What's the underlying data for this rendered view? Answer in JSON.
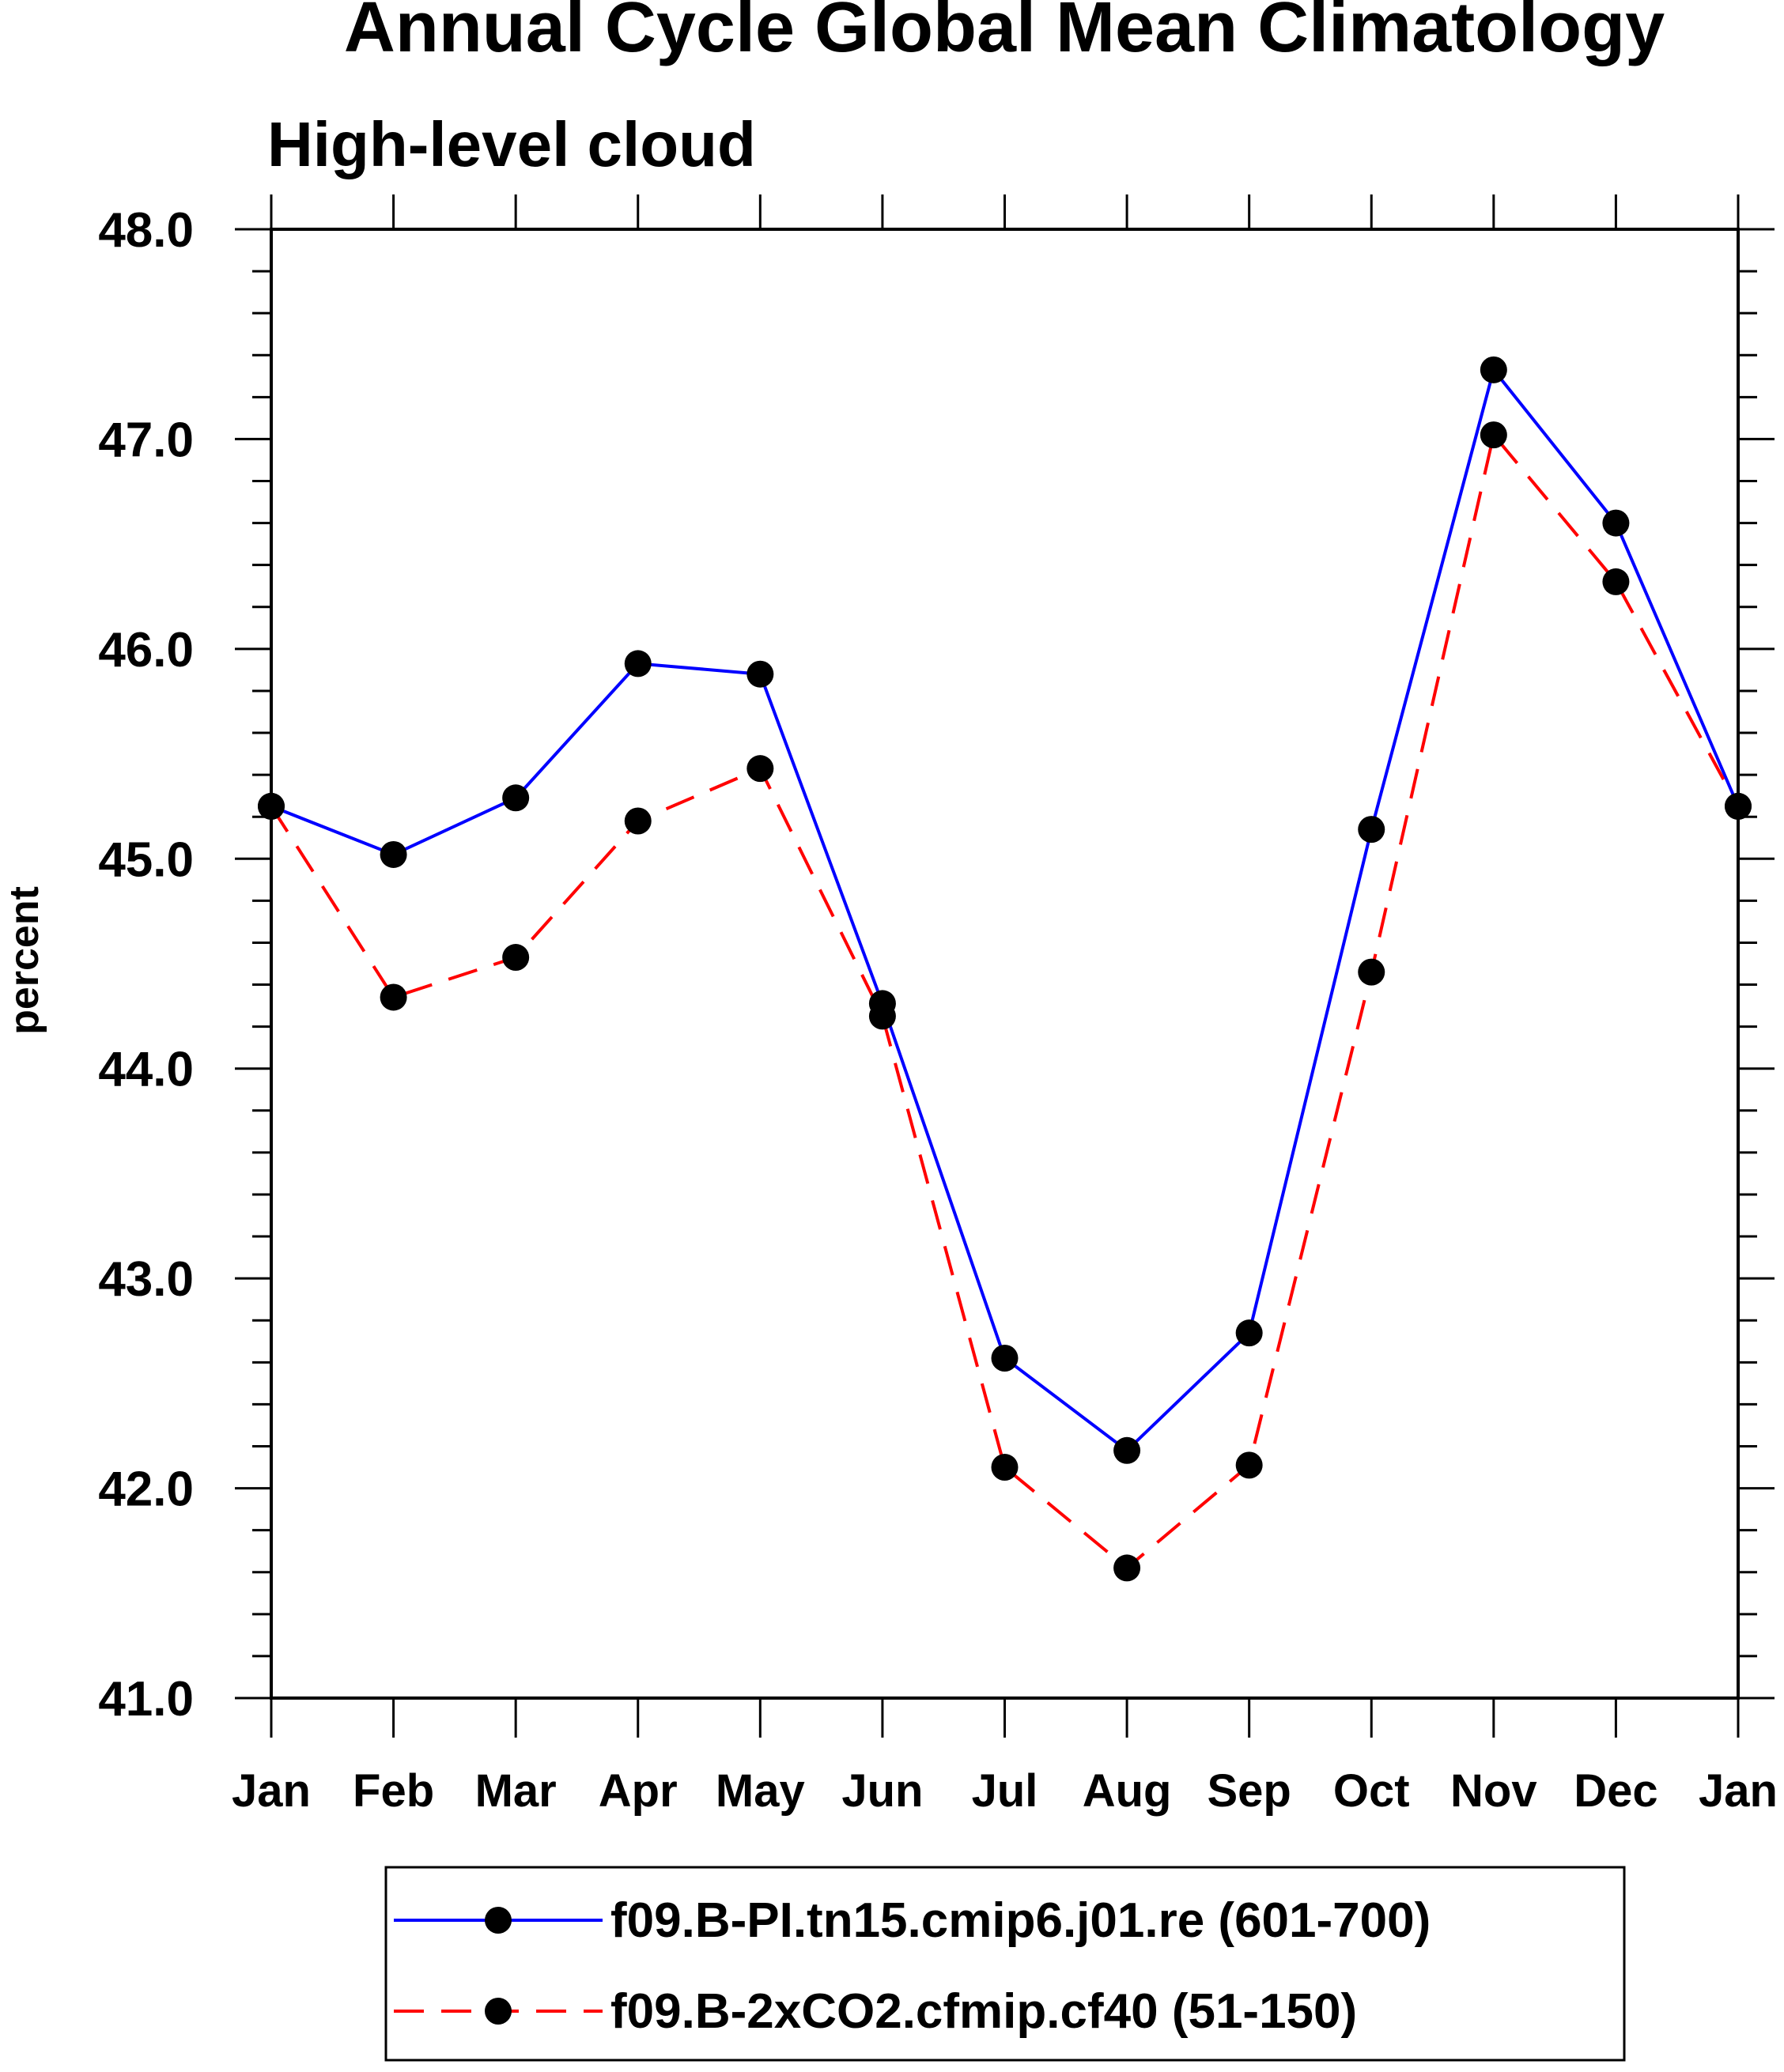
{
  "chart_data": {
    "type": "line",
    "title": "Annual Cycle Global Mean Climatology",
    "subtitle": "High-level cloud",
    "xlabel": "",
    "ylabel": "percent",
    "ylim": [
      41.0,
      48.0
    ],
    "yticks": [
      "41.0",
      "42.0",
      "43.0",
      "44.0",
      "45.0",
      "46.0",
      "47.0",
      "48.0"
    ],
    "categories": [
      "Jan",
      "Feb",
      "Mar",
      "Apr",
      "May",
      "Jun",
      "Jul",
      "Aug",
      "Sep",
      "Oct",
      "Nov",
      "Dec",
      "Jan"
    ],
    "grid": false,
    "legend_position": "bottom",
    "series": [
      {
        "name": "f09.B-PI.tn15.cmip6.j01.re (601-700)",
        "color": "#0000ff",
        "dash": "solid",
        "values": [
          45.25,
          45.02,
          45.29,
          45.93,
          45.88,
          44.31,
          42.62,
          42.18,
          42.74,
          45.14,
          47.33,
          46.6,
          45.25
        ]
      },
      {
        "name": "f09.B-2xCO2.cfmip.cf40 (51-150)",
        "color": "#ff0000",
        "dash": "dashed",
        "values": [
          45.25,
          44.34,
          44.53,
          45.18,
          45.43,
          44.25,
          42.1,
          41.62,
          42.11,
          44.46,
          47.02,
          46.32,
          45.25
        ]
      }
    ]
  }
}
